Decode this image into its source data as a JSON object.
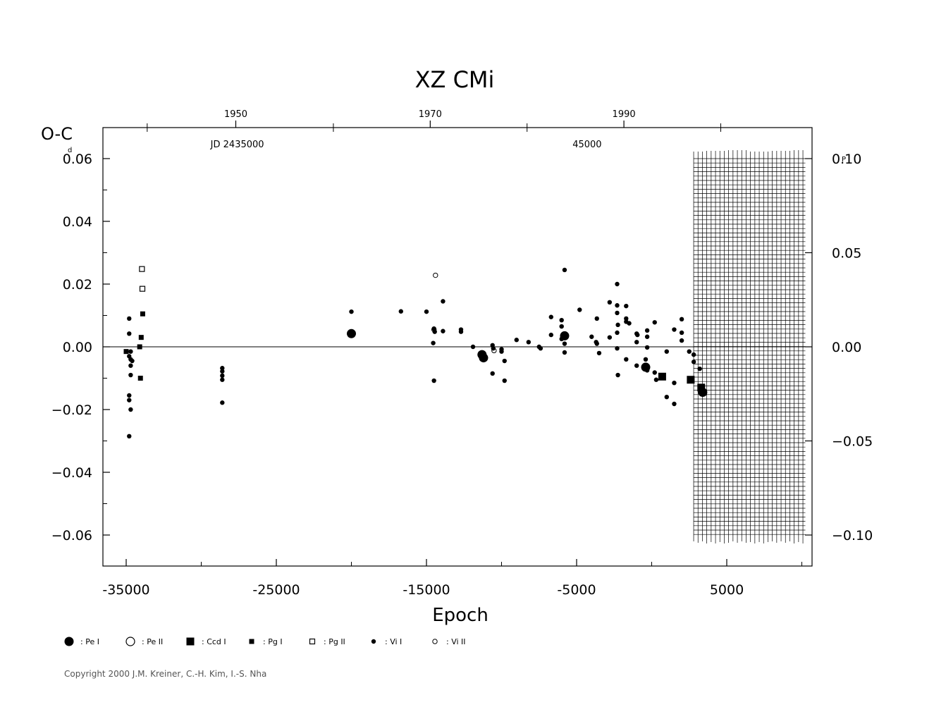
{
  "chart_data": {
    "type": "scatter",
    "title": "XZ  CMi",
    "ylabel": "O-C",
    "ylabel_unit": "d",
    "right_unit": "P",
    "xlabel": "Epoch",
    "xlim": [
      -37000,
      11000
    ],
    "ylim": [
      -0.07,
      0.07
    ],
    "right_ylim": [
      -0.121,
      0.121
    ],
    "x_ticks": [
      "-35000",
      "-25000",
      "-15000",
      "-5000",
      "5000"
    ],
    "x_tick_values": [
      -35000,
      -25000,
      -15000,
      -5000,
      5000
    ],
    "y_ticks": [
      "0.06",
      "0.04",
      "0.02",
      "0.00",
      "−0.02",
      "−0.04",
      "−0.06"
    ],
    "y_tick_values": [
      0.06,
      0.04,
      0.02,
      0.0,
      -0.02,
      -0.04,
      -0.06
    ],
    "right_ticks": [
      "0.10",
      "0.05",
      "0.00",
      "−0.05",
      "−0.10"
    ],
    "right_tick_values": [
      0.1,
      0.05,
      0.0,
      -0.05,
      -0.1
    ],
    "year_ticks": [
      "1950",
      "1970",
      "1990"
    ],
    "year_tick_epochs": [
      -27700,
      -14750,
      -1850
    ],
    "jd_labels": [
      "JD  2435000",
      "45000"
    ],
    "jd_label_epochs": [
      -27600,
      -4300
    ],
    "grid_region": {
      "x_from": 3500,
      "x_to": 10000
    },
    "grid": false,
    "legend_position": "bottom",
    "legend": [
      {
        "symbol": "circle-big-filled",
        "label": ": Pe  I"
      },
      {
        "symbol": "circle-big-open",
        "label": ": Pe  II"
      },
      {
        "symbol": "square-big-filled",
        "label": ": Ccd  I"
      },
      {
        "symbol": "square-small-filled",
        "label": ": Pg  I"
      },
      {
        "symbol": "square-small-open",
        "label": ": Pg  II"
      },
      {
        "symbol": "dot-filled",
        "label": ": Vi  I"
      },
      {
        "symbol": "circle-small-open",
        "label": ": Vi  II"
      }
    ],
    "series": [
      {
        "type": "Pe I",
        "symbol": "circle-big-filled",
        "points": [
          [
            -20000,
            0.0042
          ],
          [
            -11300,
            -0.0025
          ],
          [
            -11200,
            -0.0035
          ],
          [
            -5800,
            0.0035
          ],
          [
            -400,
            -0.0065
          ],
          [
            3400,
            -0.0145
          ]
        ]
      },
      {
        "type": "Ccd I",
        "symbol": "square-big-filled",
        "points": [
          [
            700,
            -0.0095
          ],
          [
            2600,
            -0.0105
          ],
          [
            3300,
            -0.013
          ]
        ]
      },
      {
        "type": "Pg I",
        "symbol": "square-small-filled",
        "points": [
          [
            -35000,
            -0.0015
          ],
          [
            -33900,
            0.0105
          ],
          [
            -34000,
            0.003
          ],
          [
            -34100,
            0.0
          ],
          [
            -34050,
            -0.01
          ]
        ]
      },
      {
        "type": "Pg II",
        "symbol": "square-small-open",
        "points": [
          [
            -33950,
            0.0248
          ],
          [
            -33920,
            0.0185
          ]
        ]
      },
      {
        "type": "Vi II",
        "symbol": "circle-small-open",
        "points": [
          [
            -14400,
            0.0228
          ],
          [
            -14500,
            0.0055
          ],
          [
            -10500,
            -0.0012
          ]
        ]
      },
      {
        "type": "Vi I",
        "symbol": "dot-filled",
        "points": [
          [
            -34800,
            0.009
          ],
          [
            -34800,
            0.0042
          ],
          [
            -34700,
            -0.0015
          ],
          [
            -34800,
            -0.003
          ],
          [
            -34700,
            -0.004
          ],
          [
            -34600,
            -0.0045
          ],
          [
            -34700,
            -0.006
          ],
          [
            -34700,
            -0.009
          ],
          [
            -34800,
            -0.0155
          ],
          [
            -34800,
            -0.017
          ],
          [
            -34700,
            -0.02
          ],
          [
            -34800,
            -0.0285
          ],
          [
            -28600,
            -0.0068
          ],
          [
            -28600,
            -0.0078
          ],
          [
            -28600,
            -0.0092
          ],
          [
            -28600,
            -0.0105
          ],
          [
            -28600,
            -0.0178
          ],
          [
            -20000,
            0.0112
          ],
          [
            -16700,
            0.0113
          ],
          [
            -15000,
            0.0112
          ],
          [
            -14500,
            0.0058
          ],
          [
            -14450,
            0.0048
          ],
          [
            -14550,
            0.0012
          ],
          [
            -14500,
            -0.0108
          ],
          [
            -13900,
            0.0145
          ],
          [
            -13900,
            0.005
          ],
          [
            -12700,
            0.0055
          ],
          [
            -12700,
            0.0048
          ],
          [
            -11900,
            0.0
          ],
          [
            -10600,
            0.0005
          ],
          [
            -10550,
            -0.0005
          ],
          [
            -10600,
            -0.0085
          ],
          [
            -10000,
            -0.0008
          ],
          [
            -10000,
            -0.0015
          ],
          [
            -9800,
            -0.0045
          ],
          [
            -9800,
            -0.0108
          ],
          [
            -9000,
            0.0022
          ],
          [
            -8200,
            0.0015
          ],
          [
            -7500,
            0.0
          ],
          [
            -7400,
            -0.0005
          ],
          [
            -6700,
            0.0095
          ],
          [
            -6700,
            0.0038
          ],
          [
            -6000,
            0.0085
          ],
          [
            -6000,
            0.0065
          ],
          [
            -6000,
            0.0025
          ],
          [
            -5800,
            0.0245
          ],
          [
            -5800,
            0.001
          ],
          [
            -5800,
            -0.0018
          ],
          [
            -4800,
            0.0118
          ],
          [
            -4000,
            0.0032
          ],
          [
            -3700,
            0.0015
          ],
          [
            -3650,
            0.001
          ],
          [
            -3650,
            0.009
          ],
          [
            -3500,
            -0.002
          ],
          [
            -2800,
            0.0142
          ],
          [
            -2800,
            0.003
          ],
          [
            -2300,
            0.02
          ],
          [
            -2300,
            0.0132
          ],
          [
            -2300,
            0.0108
          ],
          [
            -2250,
            0.007
          ],
          [
            -2300,
            0.0045
          ],
          [
            -2300,
            -0.0005
          ],
          [
            -2250,
            -0.009
          ],
          [
            -1700,
            0.013
          ],
          [
            -1700,
            0.009
          ],
          [
            -1700,
            0.008
          ],
          [
            -1500,
            0.0075
          ],
          [
            -1700,
            -0.004
          ],
          [
            -1000,
            0.0042
          ],
          [
            -950,
            0.0038
          ],
          [
            -1000,
            0.0015
          ],
          [
            -1000,
            -0.006
          ],
          [
            -300,
            0.0052
          ],
          [
            -300,
            0.0032
          ],
          [
            -300,
            -0.0002
          ],
          [
            -400,
            -0.004
          ],
          [
            -300,
            -0.0075
          ],
          [
            200,
            0.0078
          ],
          [
            200,
            -0.0082
          ],
          [
            300,
            -0.0105
          ],
          [
            1000,
            -0.0015
          ],
          [
            1000,
            -0.016
          ],
          [
            1500,
            0.0055
          ],
          [
            1500,
            -0.0115
          ],
          [
            1500,
            -0.0182
          ],
          [
            2000,
            0.0088
          ],
          [
            2000,
            0.0045
          ],
          [
            2000,
            0.002
          ],
          [
            2500,
            -0.0015
          ],
          [
            2800,
            -0.0025
          ],
          [
            2800,
            -0.0048
          ],
          [
            3200,
            -0.007
          ]
        ]
      }
    ]
  },
  "copyright": "Copyright 2000 J.M. Kreiner, C.-H. Kim, I.-S. Nha"
}
